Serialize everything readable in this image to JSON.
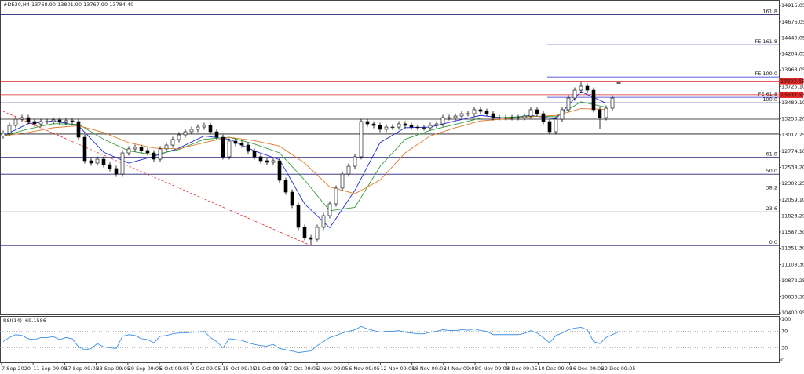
{
  "chart_data": {
    "type": "candlestick",
    "header": "#DE30,H4  13768.90 13801.90 13767.90 13784.40",
    "open": [
      13000,
      13038,
      13153,
      13245,
      13268,
      13211,
      13176,
      13211,
      13211,
      13234,
      13199,
      13222,
      13211,
      12980,
      12635,
      12600,
      12658,
      12577,
      12520,
      12439,
      12750,
      12808,
      12831,
      12785,
      12750,
      12658,
      12808,
      12865,
      12946,
      13015,
      13061,
      13096,
      13130,
      13153,
      13061,
      12980,
      12693,
      12923,
      12888,
      12865,
      12773,
      12693,
      12635,
      12612,
      12635,
      12347,
      12174,
      11979,
      11656,
      11506,
      11483,
      11656,
      11829,
      12002,
      12232,
      12439,
      12554,
      12693,
      13211,
      13176,
      13153,
      13096,
      13130,
      13130,
      13176,
      13153,
      13130,
      13119,
      13119,
      13153,
      13176,
      13268,
      13268,
      13291,
      13326,
      13326,
      13384,
      13360,
      13326,
      13268,
      13268,
      13268,
      13268,
      13268,
      13291,
      13384,
      13326,
      13211,
      13061,
      13245,
      13384,
      13556,
      13671,
      13729,
      13671,
      13384,
      13268,
      13406,
      13768.9
    ],
    "high": [
      13078,
      13193,
      13285,
      13308,
      13308,
      13251,
      13251,
      13251,
      13274,
      13274,
      13262,
      13262,
      13251,
      13020,
      12675,
      12698,
      12698,
      12617,
      12560,
      12790,
      12848,
      12871,
      12871,
      12825,
      12790,
      12848,
      12905,
      12986,
      13055,
      13101,
      13136,
      13170,
      13193,
      13193,
      13101,
      13020,
      12963,
      12963,
      12928,
      12905,
      12813,
      12733,
      12675,
      12675,
      12675,
      12387,
      12214,
      12019,
      11696,
      11546,
      11696,
      11869,
      12042,
      12272,
      12479,
      12594,
      12733,
      13251,
      13251,
      13216,
      13193,
      13170,
      13170,
      13216,
      13216,
      13193,
      13170,
      13159,
      13193,
      13216,
      13308,
      13308,
      13331,
      13366,
      13366,
      13424,
      13424,
      13400,
      13366,
      13308,
      13308,
      13308,
      13308,
      13331,
      13424,
      13424,
      13366,
      13251,
      13285,
      13424,
      13596,
      13711,
      13790,
      13769,
      13711,
      13424,
      13446,
      13596,
      13801.9
    ],
    "low": [
      12960,
      12998,
      13113,
      13205,
      13171,
      13136,
      13136,
      13171,
      13171,
      13159,
      13159,
      13171,
      12940,
      12595,
      12560,
      12560,
      12537,
      12480,
      12399,
      12399,
      12710,
      12768,
      12745,
      12710,
      12618,
      12618,
      12768,
      12825,
      12906,
      12975,
      13021,
      13056,
      13090,
      13021,
      12940,
      12653,
      12653,
      12848,
      12825,
      12733,
      12653,
      12595,
      12572,
      12572,
      12307,
      12134,
      11939,
      11616,
      11466,
      11389,
      11443,
      11616,
      11789,
      11962,
      12192,
      12399,
      12514,
      12653,
      13136,
      13113,
      13056,
      13056,
      13090,
      13090,
      13113,
      13090,
      13079,
      13079,
      13079,
      13113,
      13136,
      13228,
      13228,
      13251,
      13286,
      13286,
      13320,
      13286,
      13228,
      13228,
      13228,
      13228,
      13228,
      13228,
      13251,
      13286,
      13171,
      13021,
      13021,
      13205,
      13344,
      13516,
      13631,
      13631,
      13344,
      13100,
      13228,
      13366,
      13767.9
    ],
    "close": [
      13038,
      13153,
      13245,
      13268,
      13211,
      13176,
      13211,
      13211,
      13234,
      13199,
      13222,
      13211,
      12980,
      12635,
      12600,
      12658,
      12577,
      12520,
      12439,
      12750,
      12808,
      12831,
      12785,
      12750,
      12658,
      12808,
      12865,
      12946,
      13015,
      13061,
      13096,
      13130,
      13153,
      13061,
      12980,
      12693,
      12923,
      12888,
      12865,
      12773,
      12693,
      12635,
      12612,
      12635,
      12347,
      12174,
      11979,
      11656,
      11506,
      11483,
      11656,
      11829,
      12002,
      12232,
      12439,
      12554,
      12693,
      13211,
      13176,
      13153,
      13096,
      13130,
      13130,
      13176,
      13153,
      13130,
      13119,
      13119,
      13153,
      13176,
      13268,
      13268,
      13291,
      13326,
      13326,
      13384,
      13360,
      13326,
      13268,
      13268,
      13268,
      13268,
      13268,
      13291,
      13384,
      13326,
      13211,
      13061,
      13245,
      13384,
      13556,
      13671,
      13729,
      13671,
      13384,
      13268,
      13406,
      13556,
      13784.4
    ],
    "ylim": [
      10377.9,
      14995.7
    ],
    "yticks": [
      14915.05,
      14676.05,
      14440.05,
      14204.05,
      13968.05,
      {
        "value": 13725.1,
        "label": "13725.10"
      },
      {
        "value": 13489.1,
        "label": "13489.10"
      },
      {
        "value": 13253.2,
        "label": "13253.20"
      },
      13017.25,
      {
        "value": 12774.1,
        "label": "12774.10"
      },
      {
        "value": 12538.2,
        "label": "12538.20"
      },
      12302.25,
      {
        "value": 12059.1,
        "label": "12059.10"
      },
      {
        "value": 11823.2,
        "label": "11823.20"
      },
      {
        "value": 11587.3,
        "label": "11587.30"
      },
      {
        "value": 11351.3,
        "label": "11351.30"
      },
      {
        "value": 11108.3,
        "label": "11108.30"
      },
      10872.25,
      {
        "value": 10636.3,
        "label": "10636.30"
      },
      10400.95
    ],
    "x_labels": [
      "7 Sep 2020",
      "11 Sep 09:05",
      "17 Sep 09:05",
      "23 Sep 09:05",
      "29 Sep 09:05",
      "5 Oct 09:05",
      "9 Oct 09:05",
      "15 Oct 09:05",
      "21 Oct 09:05",
      "27 Oct 09:05",
      "2 Nov 09:05",
      "6 Nov 09:05",
      "12 Nov 09:05",
      "18 Nov 09:05",
      "24 Nov 09:05",
      "30 Nov 09:05",
      "4 Dec 09:05",
      "10 Dec 09:05",
      "16 Dec 09:05",
      "22 Dec 09:05"
    ],
    "moving_averages": {
      "x": [
        0,
        4,
        8,
        12,
        16,
        20,
        24,
        28,
        32,
        36,
        40,
        44,
        48,
        52,
        56,
        60,
        64,
        68,
        72,
        76,
        80,
        84,
        88,
        92,
        96
      ],
      "series": [
        {
          "color": "#1f2bd6",
          "values": [
            13000,
            13180,
            13220,
            13150,
            12760,
            12600,
            12700,
            12820,
            13000,
            12950,
            12780,
            12650,
            12000,
            11650,
            12200,
            12900,
            13120,
            13130,
            13220,
            13300,
            13260,
            13300,
            13250,
            13650,
            13480
          ]
        },
        {
          "color": "#2e9e3a",
          "values": [
            13000,
            13100,
            13180,
            13170,
            12950,
            12780,
            12720,
            12800,
            12950,
            12980,
            12880,
            12750,
            12350,
            11900,
            11950,
            12550,
            12950,
            13080,
            13170,
            13260,
            13270,
            13290,
            13280,
            13500,
            13420
          ]
        },
        {
          "color": "#e07a2a",
          "values": [
            13000,
            13050,
            13120,
            13150,
            13050,
            12900,
            12820,
            12810,
            12900,
            12980,
            12930,
            12850,
            12600,
            12250,
            12150,
            12350,
            12750,
            13000,
            13120,
            13220,
            13250,
            13280,
            13300,
            13400,
            13390
          ]
        }
      ]
    },
    "retracement": [
      {
        "label": "161.8",
        "value": 14782
      },
      {
        "label": "100.0",
        "value": 13486
      },
      {
        "label": "61.8",
        "value": 12685
      },
      {
        "label": "50.0",
        "value": 12437
      },
      {
        "label": "38.2",
        "value": 12190
      },
      {
        "label": "23.6",
        "value": 11884
      },
      {
        "label": "0.0",
        "value": 11389
      }
    ],
    "expansion": [
      {
        "label": "FE 161.8",
        "value": 14338
      },
      {
        "label": "FE 100.0",
        "value": 13866
      },
      {
        "label": "FE 61.8",
        "value": 13566
      }
    ],
    "support_lines": [
      13245,
      13027
    ],
    "price_labels": [
      13802.68,
      13603.53
    ],
    "trendline": {
      "x": [
        0,
        49
      ],
      "y": [
        13360,
        11389
      ]
    },
    "rsi": {
      "label": "RSI(14)",
      "color": "#3a8ee6",
      "values": [
        45,
        55,
        62,
        60,
        52,
        50,
        55,
        55,
        57,
        50,
        55,
        52,
        32,
        25,
        28,
        40,
        32,
        30,
        28,
        58,
        62,
        60,
        52,
        50,
        42,
        58,
        60,
        64,
        66,
        66,
        68,
        68,
        70,
        55,
        45,
        30,
        52,
        50,
        48,
        42,
        38,
        35,
        34,
        38,
        28,
        25,
        22,
        18,
        20,
        22,
        35,
        45,
        55,
        60,
        66,
        70,
        74,
        82,
        76,
        72,
        68,
        70,
        70,
        72,
        68,
        66,
        64,
        64,
        68,
        70,
        74,
        72,
        72,
        74,
        73,
        76,
        72,
        70,
        62,
        62,
        62,
        62,
        62,
        65,
        72,
        66,
        55,
        42,
        60,
        66,
        74,
        78,
        80,
        74,
        45,
        40,
        55,
        62,
        69.1586
      ],
      "ylim": [
        0,
        100
      ],
      "yticks": [
        100,
        70,
        30,
        0
      ]
    }
  }
}
